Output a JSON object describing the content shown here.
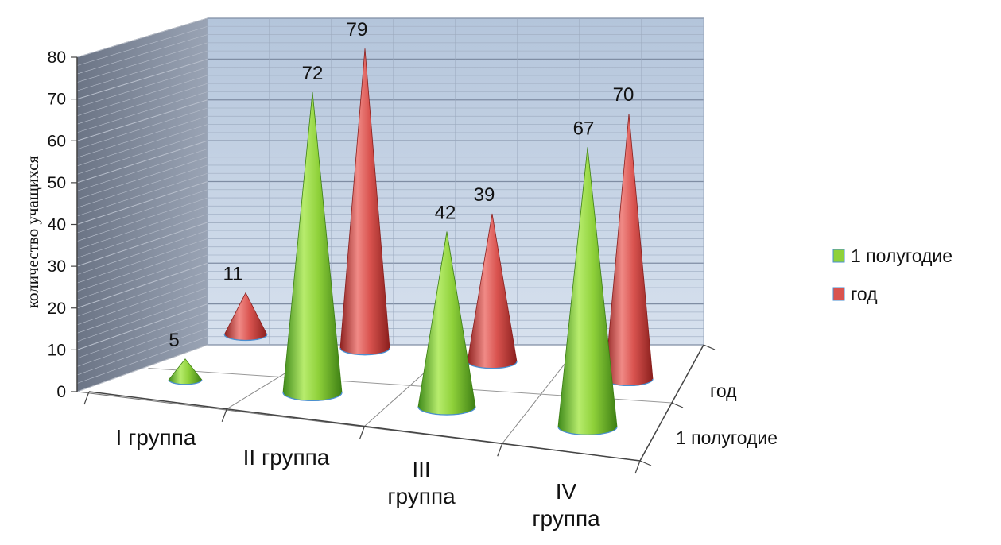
{
  "chart_data": {
    "type": "bar",
    "style": "3d-cone",
    "ylabel": "количество учащихся",
    "ylim": [
      0,
      80
    ],
    "yticks": [
      0,
      10,
      20,
      30,
      40,
      50,
      60,
      70,
      80
    ],
    "categories": [
      "I группа",
      "II группа",
      "III группа",
      "IV группа"
    ],
    "series": [
      {
        "name": "1 полугодие",
        "color": "#8fd13a",
        "values": [
          5,
          72,
          42,
          67
        ]
      },
      {
        "name": "год",
        "color": "#d9534f",
        "values": [
          11,
          79,
          39,
          70
        ]
      }
    ],
    "legend_position": "right",
    "grid": true
  }
}
